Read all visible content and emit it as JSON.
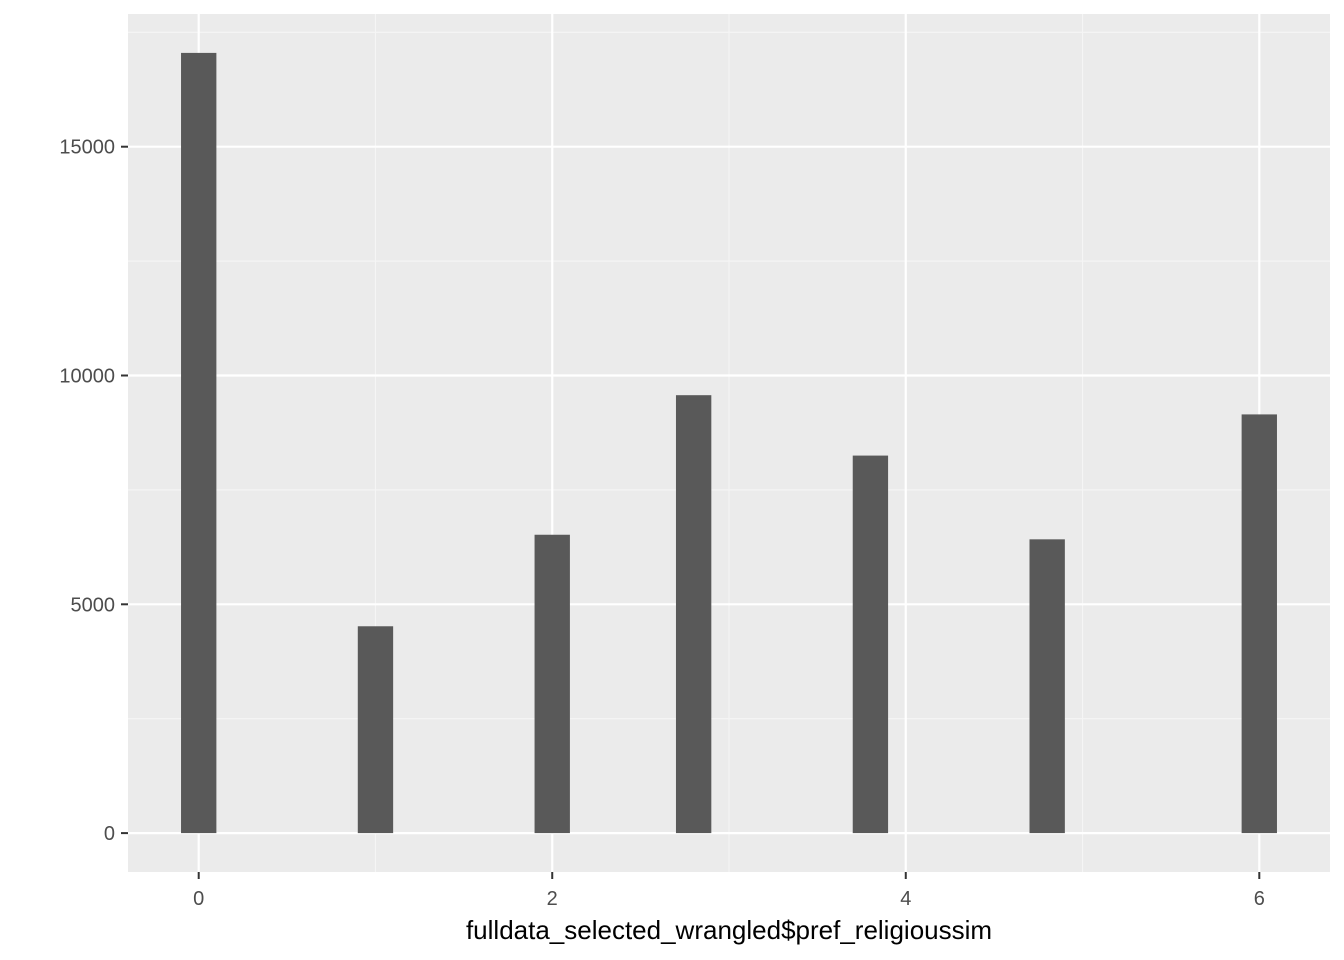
{
  "chart_data": {
    "type": "bar",
    "title": "",
    "xlabel": "fulldata_selected_wrangled$pref_religioussim",
    "ylabel": "",
    "x": [
      0,
      1,
      2,
      2.8,
      3.8,
      4.8,
      6
    ],
    "values": [
      17050,
      4520,
      6520,
      9570,
      8250,
      6420,
      9150
    ],
    "bar_width": 0.2,
    "xlim": [
      -0.4,
      6.4
    ],
    "ylim": [
      -850,
      17900
    ],
    "x_major_ticks": [
      0,
      2,
      4,
      6
    ],
    "x_minor_ticks": [
      1,
      3,
      5
    ],
    "x_tick_labels": [
      "0",
      "2",
      "4",
      "6"
    ],
    "y_major_ticks": [
      0,
      5000,
      10000,
      15000
    ],
    "y_minor_ticks": [
      2500,
      7500,
      12500,
      17500
    ],
    "y_tick_labels": [
      "0",
      "5000",
      "10000",
      "15000"
    ],
    "grid": true,
    "colors": {
      "panel_background": "#ebebeb",
      "grid_major": "#ffffff",
      "grid_minor": "#f5f5f5",
      "bar_fill": "#595959",
      "tick_mark": "#333333",
      "tick_label": "#4d4d4d"
    }
  }
}
